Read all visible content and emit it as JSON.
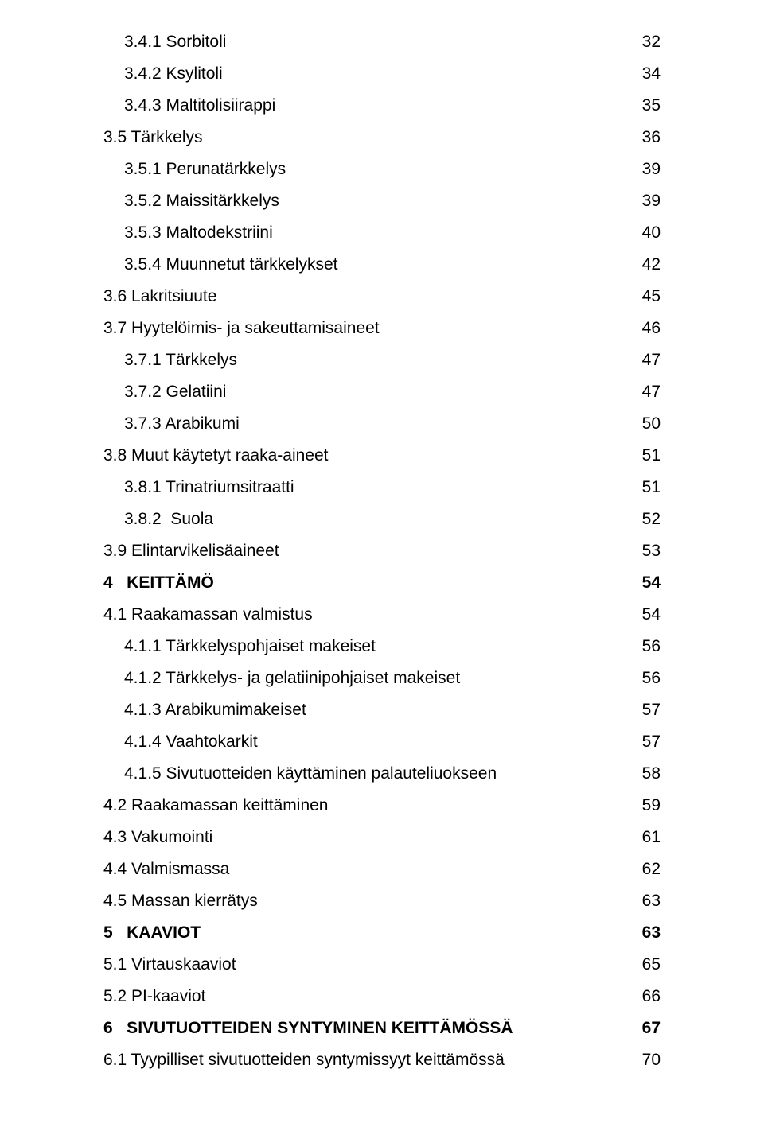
{
  "text_color": "#000000",
  "background_color": "#ffffff",
  "font_family": "Arial",
  "font_size_pt": 16,
  "entries": [
    {
      "label": "3.4.1 Sorbitoli",
      "page": "32",
      "indent": 1,
      "bold": false
    },
    {
      "label": "3.4.2 Ksylitoli",
      "page": "34",
      "indent": 1,
      "bold": false
    },
    {
      "label": "3.4.3 Maltitolisiirappi",
      "page": "35",
      "indent": 1,
      "bold": false
    },
    {
      "label": "3.5 Tärkkelys",
      "page": "36",
      "indent": 0,
      "bold": false
    },
    {
      "label": "3.5.1 Perunatärkkelys",
      "page": "39",
      "indent": 1,
      "bold": false
    },
    {
      "label": "3.5.2 Maissitärkkelys",
      "page": "39",
      "indent": 1,
      "bold": false
    },
    {
      "label": "3.5.3 Maltodekstriini",
      "page": "40",
      "indent": 1,
      "bold": false
    },
    {
      "label": "3.5.4 Muunnetut tärkkelykset",
      "page": "42",
      "indent": 1,
      "bold": false
    },
    {
      "label": "3.6 Lakritsiuute",
      "page": "45",
      "indent": 0,
      "bold": false
    },
    {
      "label": "3.7 Hyytelöimis- ja sakeuttamisaineet",
      "page": "46",
      "indent": 0,
      "bold": false
    },
    {
      "label": "3.7.1 Tärkkelys",
      "page": "47",
      "indent": 1,
      "bold": false
    },
    {
      "label": "3.7.2 Gelatiini",
      "page": "47",
      "indent": 1,
      "bold": false
    },
    {
      "label": "3.7.3 Arabikumi",
      "page": "50",
      "indent": 1,
      "bold": false
    },
    {
      "label": "3.8 Muut käytetyt raaka-aineet",
      "page": "51",
      "indent": 0,
      "bold": false
    },
    {
      "label": "3.8.1 Trinatriumsitraatti",
      "page": "51",
      "indent": 1,
      "bold": false
    },
    {
      "label": "3.8.2  Suola",
      "page": "52",
      "indent": 1,
      "bold": false
    },
    {
      "label": "3.9 Elintarvikelisäaineet",
      "page": "53",
      "indent": 0,
      "bold": false
    },
    {
      "label": "4   KEITTÄMÖ",
      "page": "54",
      "indent": 0,
      "bold": true
    },
    {
      "label": "4.1 Raakamassan valmistus",
      "page": "54",
      "indent": 0,
      "bold": false
    },
    {
      "label": "4.1.1 Tärkkelyspohjaiset makeiset",
      "page": "56",
      "indent": 1,
      "bold": false
    },
    {
      "label": "4.1.2 Tärkkelys- ja gelatiinipohjaiset makeiset",
      "page": "56",
      "indent": 1,
      "bold": false
    },
    {
      "label": "4.1.3 Arabikumimakeiset",
      "page": "57",
      "indent": 1,
      "bold": false
    },
    {
      "label": "4.1.4 Vaahtokarkit",
      "page": "57",
      "indent": 1,
      "bold": false
    },
    {
      "label": "4.1.5 Sivutuotteiden käyttäminen palauteliuokseen",
      "page": "58",
      "indent": 1,
      "bold": false
    },
    {
      "label": "4.2 Raakamassan keittäminen",
      "page": "59",
      "indent": 0,
      "bold": false
    },
    {
      "label": "4.3 Vakumointi",
      "page": "61",
      "indent": 0,
      "bold": false
    },
    {
      "label": "4.4 Valmismassa",
      "page": "62",
      "indent": 0,
      "bold": false
    },
    {
      "label": "4.5 Massan kierrätys",
      "page": "63",
      "indent": 0,
      "bold": false
    },
    {
      "label": "5   KAAVIOT",
      "page": "63",
      "indent": 0,
      "bold": true
    },
    {
      "label": "5.1 Virtauskaaviot",
      "page": "65",
      "indent": 0,
      "bold": false
    },
    {
      "label": "5.2 PI-kaaviot",
      "page": "66",
      "indent": 0,
      "bold": false
    },
    {
      "label": "6   SIVUTUOTTEIDEN SYNTYMINEN KEITTÄMÖSSÄ",
      "page": "67",
      "indent": 0,
      "bold": true
    },
    {
      "label": "6.1 Tyypilliset sivutuotteiden syntymissyyt keittämössä",
      "page": "70",
      "indent": 0,
      "bold": false
    }
  ]
}
